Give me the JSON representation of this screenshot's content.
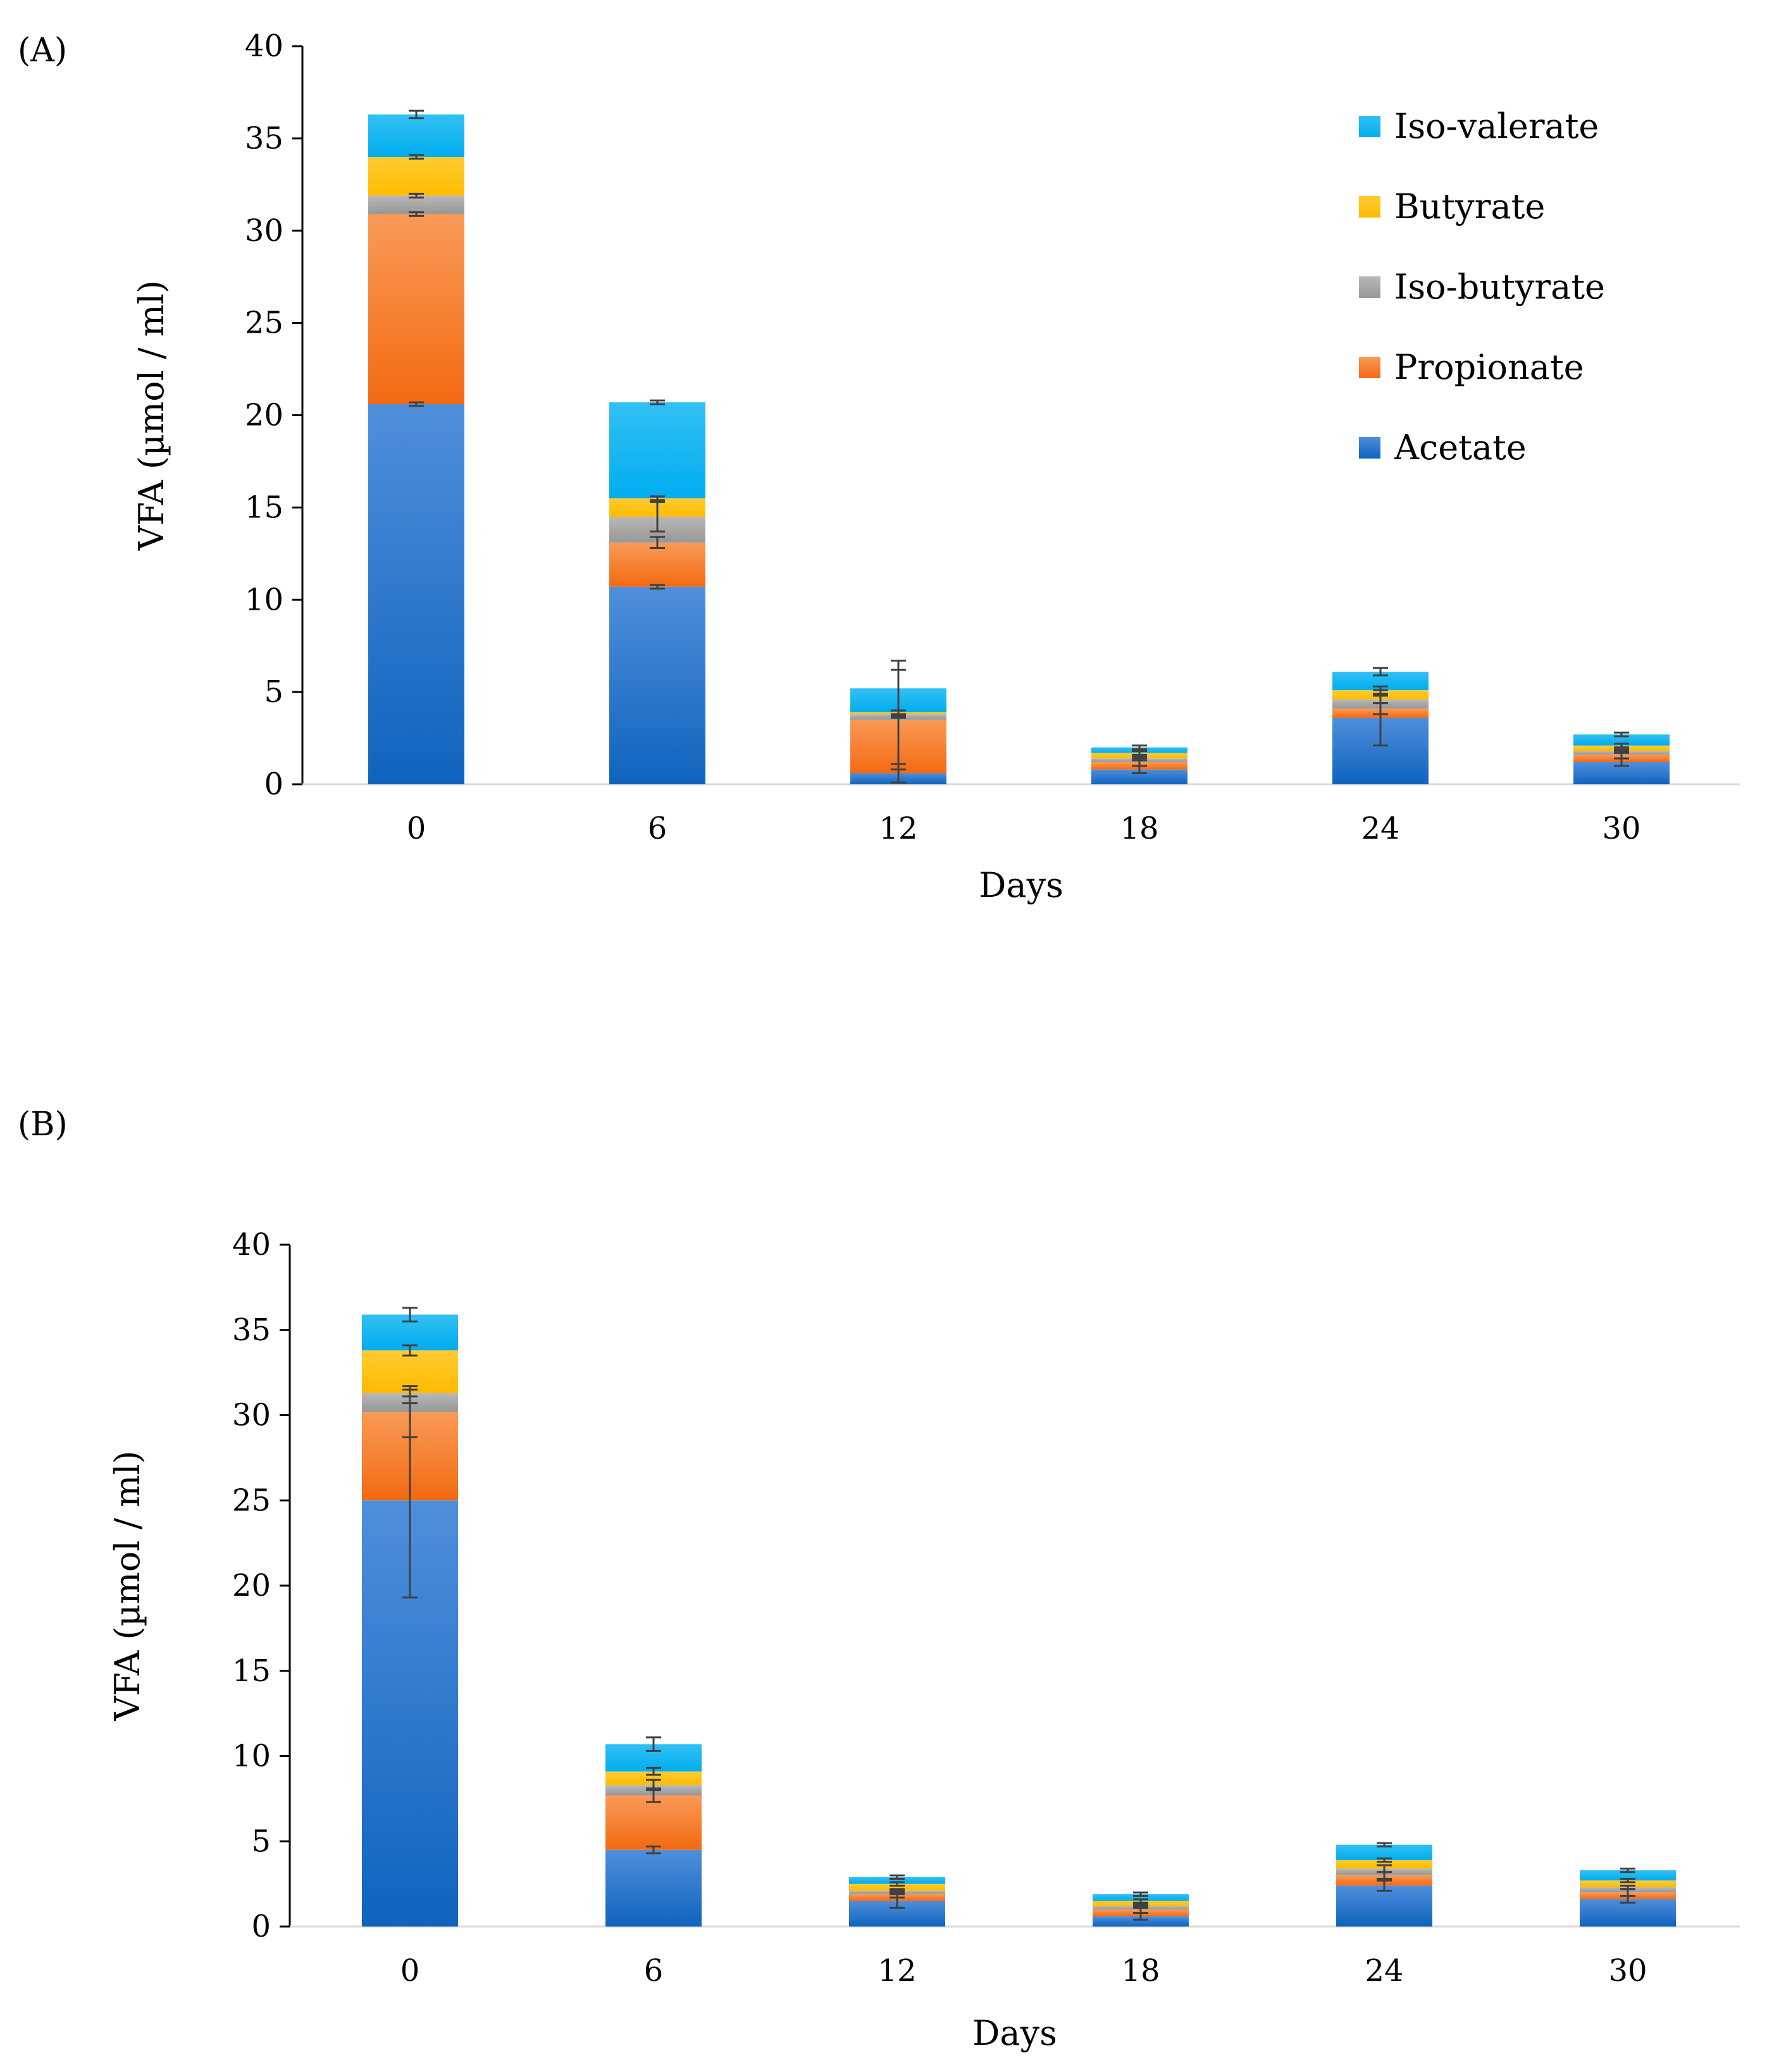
{
  "chart_data": [
    {
      "type": "bar",
      "stacked": true,
      "panel_label": "(A)",
      "title": "",
      "xlabel": "Days",
      "ylabel": "VFA (µmol / ml)",
      "ylim": [
        0,
        40
      ],
      "yticks": [
        0,
        5,
        10,
        15,
        20,
        25,
        30,
        35,
        40
      ],
      "categories": [
        "0",
        "6",
        "12",
        "18",
        "24",
        "30"
      ],
      "legend_position": "top-right",
      "series": [
        {
          "name": "Acetate",
          "color": "#1565C0",
          "values": [
            20.6,
            10.7,
            0.6,
            0.8,
            3.6,
            1.2
          ],
          "error": [
            0.1,
            0.1,
            0.5,
            0.2,
            1.5,
            0.2
          ]
        },
        {
          "name": "Propionate",
          "color": "#F46F20",
          "values": [
            10.3,
            2.4,
            2.9,
            0.4,
            0.5,
            0.4
          ],
          "error": [
            0.1,
            0.3,
            2.7,
            0.2,
            0.3,
            0.2
          ]
        },
        {
          "name": "Iso-butyrate",
          "color": "#A5A5A5",
          "values": [
            1.0,
            1.4,
            0.3,
            0.2,
            0.5,
            0.2
          ],
          "error": [
            0.1,
            0.8,
            0.2,
            0.1,
            0.2,
            0.1
          ]
        },
        {
          "name": "Butyrate",
          "color": "#FFC000",
          "values": [
            2.1,
            1.0,
            0.1,
            0.3,
            0.5,
            0.3
          ],
          "error": [
            0.1,
            0.1,
            0.1,
            0.1,
            0.2,
            0.1
          ]
        },
        {
          "name": "Iso-valerate",
          "color": "#00B0F0",
          "values": [
            2.3,
            5.2,
            1.3,
            0.3,
            1.0,
            0.6
          ],
          "error": [
            0.2,
            0.1,
            1.5,
            0.1,
            0.2,
            0.1
          ]
        }
      ]
    },
    {
      "type": "bar",
      "stacked": true,
      "panel_label": "(B)",
      "title": "",
      "xlabel": "Days",
      "ylabel": "VFA (µmol / ml)",
      "ylim": [
        0,
        40
      ],
      "yticks": [
        0,
        5,
        10,
        15,
        20,
        25,
        30,
        35,
        40
      ],
      "categories": [
        "0",
        "6",
        "12",
        "18",
        "24",
        "30"
      ],
      "legend_position": "none",
      "series": [
        {
          "name": "Acetate",
          "color": "#1565C0",
          "values": [
            25.0,
            4.5,
            1.5,
            0.6,
            2.4,
            1.6
          ],
          "error": [
            5.7,
            0.2,
            0.4,
            0.2,
            0.3,
            0.2
          ]
        },
        {
          "name": "Propionate",
          "color": "#F46F20",
          "values": [
            5.2,
            3.2,
            0.4,
            0.4,
            0.6,
            0.4
          ],
          "error": [
            1.5,
            0.4,
            0.2,
            0.2,
            0.2,
            0.2
          ]
        },
        {
          "name": "Iso-butyrate",
          "color": "#A5A5A5",
          "values": [
            1.1,
            0.6,
            0.2,
            0.2,
            0.4,
            0.3
          ],
          "error": [
            0.2,
            0.3,
            0.1,
            0.1,
            0.2,
            0.1
          ]
        },
        {
          "name": "Butyrate",
          "color": "#FFC000",
          "values": [
            2.5,
            0.8,
            0.4,
            0.3,
            0.5,
            0.4
          ],
          "error": [
            0.3,
            0.2,
            0.1,
            0.1,
            0.1,
            0.1
          ]
        },
        {
          "name": "Iso-valerate",
          "color": "#00B0F0",
          "values": [
            2.1,
            1.6,
            0.4,
            0.4,
            0.9,
            0.6
          ],
          "error": [
            0.4,
            0.4,
            0.1,
            0.1,
            0.1,
            0.1
          ]
        }
      ]
    }
  ]
}
